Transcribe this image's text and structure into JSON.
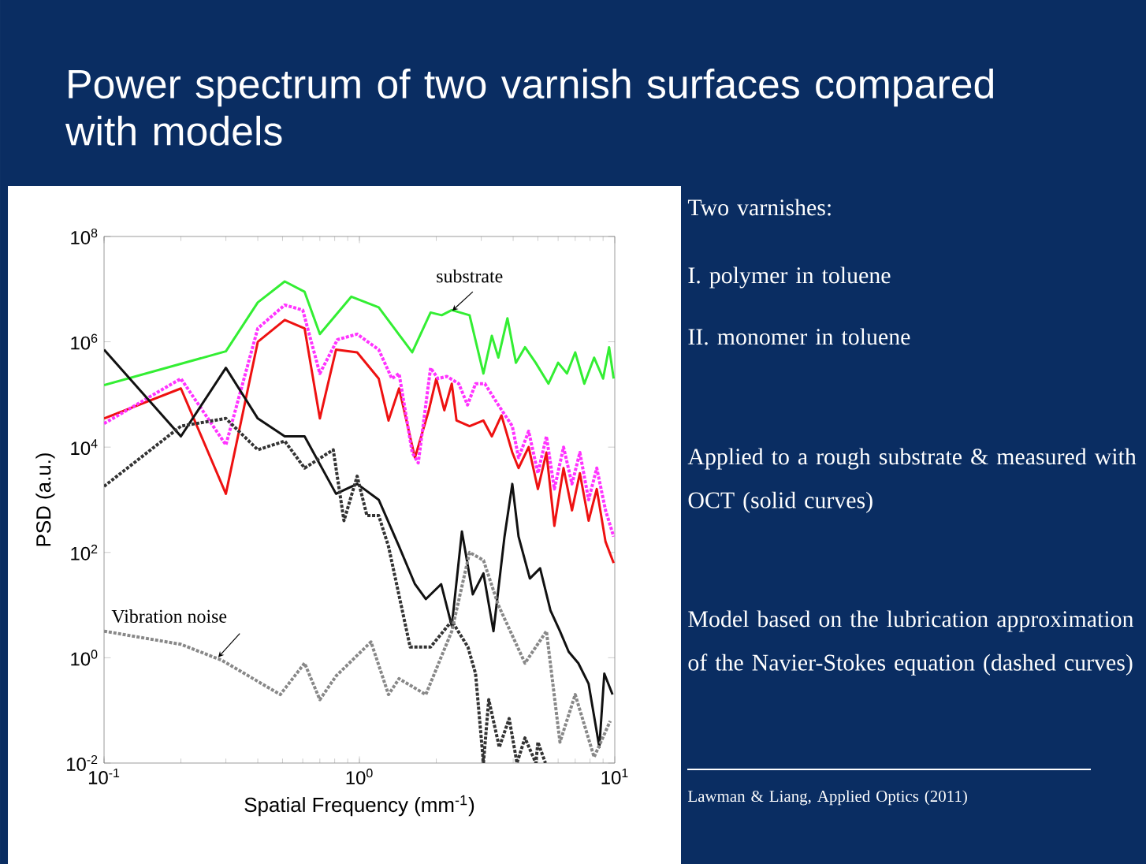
{
  "chart_data": {
    "type": "line",
    "title": "Power spectrum of two varnish surfaces compared with models",
    "xlabel": "Spatial Frequency (mm$^{-1}$)",
    "ylabel": "PSD (a.u.)",
    "log": "xy",
    "xlim": [
      0.1,
      10
    ],
    "ylim": [
      0.01,
      100000000
    ],
    "xticks": [
      {
        "value": 0.1,
        "label": "10$^{-1}$"
      },
      {
        "value": 1,
        "label": "10$^{0}$"
      },
      {
        "value": 10,
        "label": "10$^{1}$"
      }
    ],
    "yticks": [
      {
        "value": 0.01,
        "label": "10$^{-2}$"
      },
      {
        "value": 1,
        "label": "10$^{0}$"
      },
      {
        "value": 100,
        "label": "10$^{2}$"
      },
      {
        "value": 10000,
        "label": "10$^{4}$"
      },
      {
        "value": 1000000,
        "label": "10$^{6}$"
      },
      {
        "value": 100000000,
        "label": "10$^{8}$"
      }
    ],
    "series": [
      {
        "name": "substrate",
        "color": "#33ee33",
        "line_style": "solid",
        "x": [
          0.1,
          0.3,
          0.4,
          0.51,
          0.61,
          0.7,
          0.93,
          1.19,
          1.61,
          1.9,
          2.1,
          2.3,
          2.7,
          3.06,
          3.3,
          3.5,
          3.8,
          4.1,
          4.45,
          4.9,
          5.5,
          6.0,
          6.5,
          7.0,
          7.6,
          8.3,
          9.0,
          9.5,
          9.9
        ],
        "values": [
          150000.0,
          660000.0,
          5600000.0,
          14000000.0,
          8900000.0,
          1400000.0,
          7200000.0,
          4500000.0,
          630000.0,
          3600000.0,
          3200000.0,
          4000000.0,
          3200000.0,
          250000.0,
          1300000.0,
          500000.0,
          2800000.0,
          400000.0,
          790000.0,
          400000.0,
          160000.0,
          400000.0,
          250000.0,
          630000.0,
          160000.0,
          500000.0,
          200000.0,
          790000.0,
          200000.0
        ]
      },
      {
        "color": "#ee1111",
        "line_style": "solid",
        "x": [
          0.1,
          0.2,
          0.3,
          0.4,
          0.51,
          0.61,
          0.7,
          0.81,
          0.98,
          1.19,
          1.3,
          1.43,
          1.65,
          1.87,
          2.0,
          2.15,
          2.3,
          2.4,
          2.7,
          3.06,
          3.3,
          3.6,
          3.97,
          4.2,
          4.6,
          5.0,
          5.4,
          5.8,
          6.3,
          6.8,
          7.3,
          7.9,
          8.5,
          9.2,
          9.9
        ],
        "values": [
          35000.0,
          130000.0,
          1300.0,
          1000000.0,
          2600000.0,
          1800000.0,
          35000.0,
          710000.0,
          630000.0,
          200000.0,
          32000.0,
          130000.0,
          6300.0,
          50000.0,
          200000.0,
          50000.0,
          160000.0,
          32000.0,
          25000.0,
          32000.0,
          16000.0,
          40000.0,
          7900.0,
          4000.0,
          10000.0,
          1600.0,
          7900.0,
          320,
          4000.0,
          630,
          3200.0,
          400,
          1600.0,
          160,
          63
        ]
      },
      {
        "color": "#ff33ff",
        "line_style": "dotted",
        "x": [
          0.1,
          0.2,
          0.3,
          0.4,
          0.51,
          0.6,
          0.7,
          0.82,
          0.98,
          1.19,
          1.34,
          1.43,
          1.61,
          1.7,
          1.9,
          2.03,
          2.2,
          2.45,
          2.65,
          2.85,
          3.1,
          3.5,
          3.97,
          4.2,
          4.6,
          5.0,
          5.4,
          5.8,
          6.3,
          6.8,
          7.3,
          7.9,
          8.5,
          9.2,
          9.9
        ],
        "values": [
          28000.0,
          200000.0,
          11000.0,
          1800000.0,
          5000000.0,
          4000000.0,
          250000.0,
          1100000.0,
          1400000.0,
          710000.0,
          200000.0,
          250000.0,
          7900.0,
          5000.0,
          320000.0,
          200000.0,
          220000.0,
          160000.0,
          63000.0,
          160000.0,
          160000.0,
          63000.0,
          25000.0,
          6300.0,
          20000.0,
          3200.0,
          16000.0,
          1600.0,
          10000.0,
          2000.0,
          7900.0,
          1000.0,
          4000.0,
          630,
          200
        ]
      },
      {
        "color": "#111111",
        "line_style": "solid",
        "x": [
          0.1,
          0.2,
          0.3,
          0.4,
          0.51,
          0.61,
          0.81,
          0.98,
          1.19,
          1.43,
          1.65,
          1.82,
          2.09,
          2.3,
          2.52,
          2.78,
          3.06,
          3.35,
          3.7,
          3.97,
          4.2,
          4.65,
          5.1,
          5.6,
          6.1,
          6.6,
          7.2,
          7.9,
          8.7,
          9.1,
          9.8
        ],
        "values": [
          710000.0,
          16000.0,
          320000.0,
          35000.0,
          16000.0,
          16000.0,
          1300.0,
          2000.0,
          1000.0,
          130,
          25,
          13,
          25,
          4.0,
          250,
          16,
          40,
          3.2,
          200,
          2000.0,
          200,
          32,
          50,
          7.9,
          3.2,
          1.3,
          0.79,
          0.32,
          0.02,
          0.5,
          0.2
        ]
      },
      {
        "color": "#333333",
        "line_style": "dotted",
        "x": [
          0.1,
          0.2,
          0.3,
          0.4,
          0.51,
          0.61,
          0.79,
          0.87,
          0.98,
          1.07,
          1.19,
          1.3,
          1.58,
          1.9,
          2.3,
          2.66,
          2.85,
          3.06,
          3.21,
          3.53,
          3.86,
          4.14,
          4.45,
          4.91,
          5.0,
          5.35
        ],
        "values": [
          1800.0,
          25000.0,
          35000.0,
          8900.0,
          13000.0,
          4000.0,
          8900.0,
          400,
          2800.0,
          500,
          500,
          130,
          1.6,
          1.6,
          5.0,
          1.6,
          0.5,
          0.01,
          0.16,
          0.02,
          0.07,
          0.01,
          0.03,
          0.01,
          0.025,
          0.01
        ]
      },
      {
        "name": "Vibration noise",
        "color": "#888888",
        "line_style": "dotted",
        "x": [
          0.1,
          0.2,
          0.29,
          0.49,
          0.61,
          0.7,
          0.81,
          1.11,
          1.3,
          1.43,
          1.82,
          2.3,
          2.7,
          3.06,
          3.5,
          4.45,
          5.4,
          6.1,
          7.0,
          8.3,
          9.6
        ],
        "values": [
          3.2,
          1.8,
          0.89,
          0.2,
          0.79,
          0.16,
          0.45,
          2.0,
          0.2,
          0.4,
          0.2,
          3.2,
          100,
          71,
          10,
          0.79,
          3.2,
          0.025,
          0.2,
          0.013,
          0.063
        ]
      }
    ],
    "annotations": [
      "Two varnishes:",
      "I. polymer in toluene",
      "II. monomer in toluene",
      "Applied to a rough substrate & measured with OCT (solid curves)",
      "Model based on the lubrication approximation of the Navier-Stokes equation (dashed curves)",
      "Lawman & Liang, Applied Optics (2011)"
    ]
  }
}
